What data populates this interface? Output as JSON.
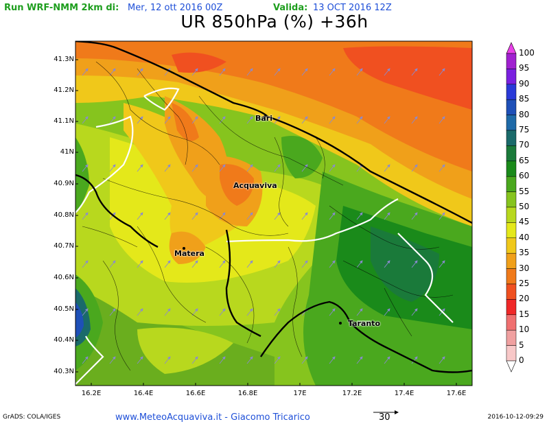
{
  "header": {
    "run_label": "Run WRF-NMM 2km di:",
    "run_date": "Mer, 12 ott 2016 00Z",
    "valid_label": "Valida:",
    "valid_date": "13 OCT 2016 12Z"
  },
  "title": "UR 850hPa (%) +36h",
  "axes": {
    "lat_ticks": [
      "41.3N",
      "41.2N",
      "41.1N",
      "41N",
      "40.9N",
      "40.8N",
      "40.7N",
      "40.6N",
      "40.5N",
      "40.4N",
      "40.3N"
    ],
    "lon_ticks": [
      "16.2E",
      "16.4E",
      "16.6E",
      "16.8E",
      "17E",
      "17.2E",
      "17.4E",
      "17.6E"
    ]
  },
  "cities": [
    {
      "name": "Bari"
    },
    {
      "name": "Acquaviva"
    },
    {
      "name": "Matera"
    },
    {
      "name": "Taranto"
    }
  ],
  "colorbar": {
    "labels": [
      "100",
      "95",
      "90",
      "85",
      "80",
      "75",
      "70",
      "65",
      "60",
      "55",
      "50",
      "45",
      "40",
      "35",
      "30",
      "25",
      "20",
      "15",
      "10",
      "5",
      "0"
    ],
    "colors": [
      "#e8e8e8",
      "#a020d0",
      "#7a20e0",
      "#2a3ad8",
      "#1e50b8",
      "#1e6aa8",
      "#1a6a6a",
      "#1a7a3a",
      "#1a8a1a",
      "#4aa81e",
      "#86c41e",
      "#b8d81e",
      "#e4e81a",
      "#f0c81a",
      "#f0a01a",
      "#f07a1a",
      "#f05020",
      "#f02828",
      "#f07070",
      "#f0a0a0",
      "#f8c8c8"
    ]
  },
  "vector": {
    "value": "30"
  },
  "footer": {
    "grads": "GrADS: COLA/IGES",
    "site": "www.MeteoAcquaviva.it  -  Giacomo Tricarico",
    "timestamp": "2016-10-12-09:29"
  }
}
